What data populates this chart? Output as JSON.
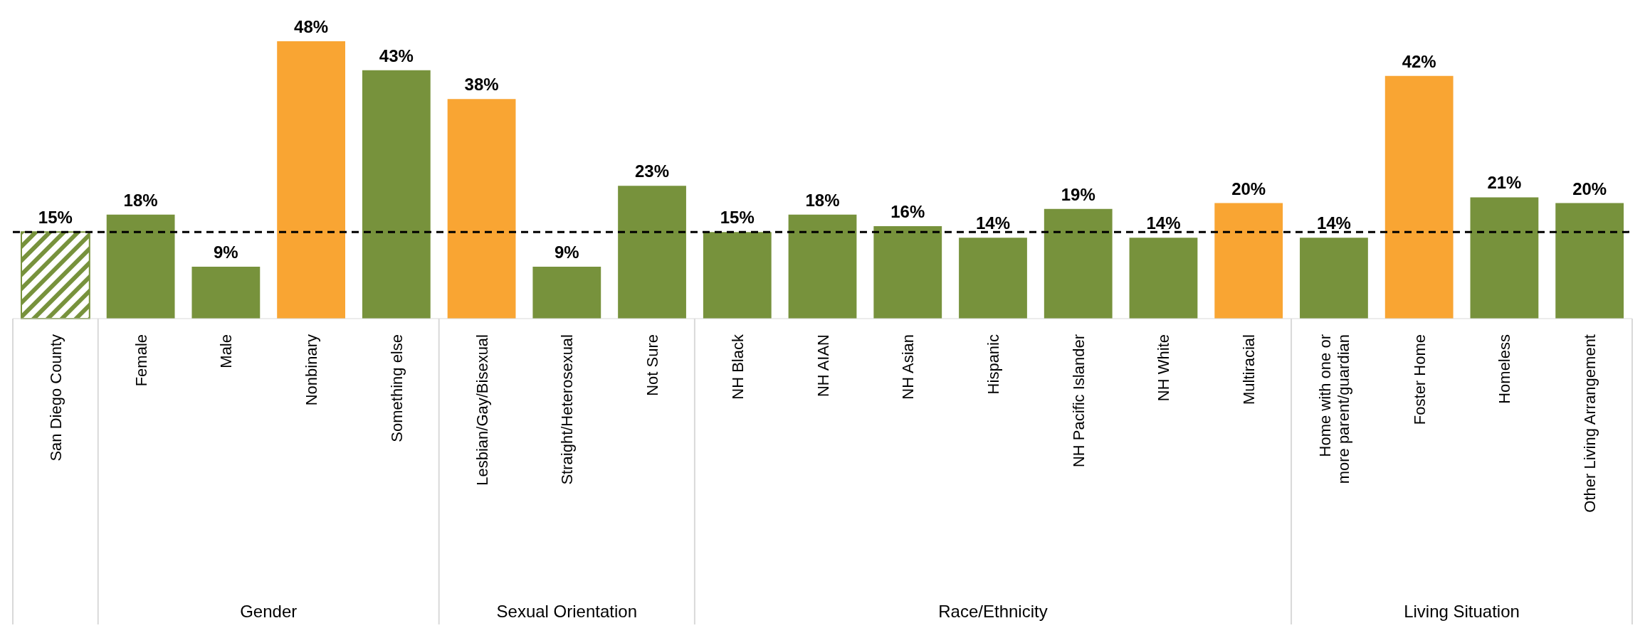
{
  "chart_data": {
    "type": "bar",
    "categories": [
      "San Diego County",
      "Female",
      "Male",
      "Nonbinary",
      "Something else",
      "Lesbian/Gay/Bisexual",
      "Straight/Heterosexual",
      "Not Sure",
      "NH Black",
      "NH AIAN",
      "NH Asian",
      "Hispanic",
      "NH Pacific Islander",
      "NH White",
      "Multiracial",
      "Home with one or more parent/guardian",
      "Foster Home",
      "Homeless",
      "Other Living Arrangement"
    ],
    "values": [
      15,
      18,
      9,
      48,
      43,
      38,
      9,
      23,
      15,
      18,
      16,
      14,
      19,
      14,
      20,
      14,
      42,
      21,
      20
    ],
    "value_labels": [
      "15%",
      "18%",
      "9%",
      "48%",
      "43%",
      "38%",
      "9%",
      "23%",
      "15%",
      "18%",
      "16%",
      "14%",
      "19%",
      "14%",
      "20%",
      "14%",
      "42%",
      "21%",
      "20%"
    ],
    "colors": [
      "#77923c",
      "#77923c",
      "#77923c",
      "#f9a533",
      "#77923c",
      "#f9a533",
      "#77923c",
      "#77923c",
      "#77923c",
      "#77923c",
      "#77923c",
      "#77923c",
      "#77923c",
      "#77923c",
      "#f9a533",
      "#77923c",
      "#f9a533",
      "#77923c",
      "#77923c"
    ],
    "ref_lines": [
      {
        "axis": "y",
        "value": 15,
        "color": "#000000",
        "line_style": "dashed"
      }
    ],
    "annotations": [
      "Gender",
      "Sexual Orientation",
      "Race/Ethnicity",
      "Living Situation"
    ]
  }
}
